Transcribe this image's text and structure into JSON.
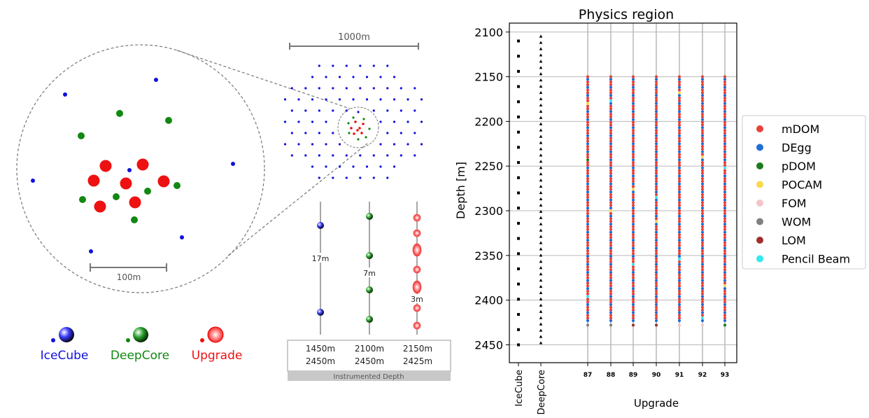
{
  "left_panel": {
    "zoom_scale_label": "100m",
    "legend": [
      {
        "name": "IceCube",
        "color": "#1010e0"
      },
      {
        "name": "DeepCore",
        "color": "#118811"
      },
      {
        "name": "Upgrade",
        "color": "#ee1111"
      }
    ]
  },
  "middle_panel": {
    "array_scale_label": "1000m",
    "spacings": [
      "17m",
      "7m",
      "3m"
    ],
    "depth_ranges": [
      {
        "top": "1450m",
        "bottom": "2450m"
      },
      {
        "top": "2100m",
        "bottom": "2450m"
      },
      {
        "top": "2150m",
        "bottom": "2425m"
      }
    ],
    "depth_caption": "Instrumented Depth"
  },
  "chart_data": {
    "type": "scatter",
    "title": "Physics region",
    "ylabel": "Depth [m]",
    "xlabel": "Upgrade",
    "ylim": [
      2470,
      2090
    ],
    "yticks": [
      2100,
      2150,
      2200,
      2250,
      2300,
      2350,
      2400,
      2450
    ],
    "grid": true,
    "legend_position": "right",
    "categories": [
      "IceCube",
      "DeepCore",
      "87",
      "88",
      "89",
      "90",
      "91",
      "92",
      "93"
    ],
    "icecube": {
      "marker": "square",
      "color": "#000000",
      "depth_start": 2110,
      "depth_end": 2450,
      "spacing": 17
    },
    "deepcore": {
      "marker": "triangle",
      "color": "#000000",
      "depth_start": 2105,
      "depth_end": 2448,
      "spacing": 7
    },
    "upgrade_strings": {
      "depth_start": 2150,
      "depth_end": 2425,
      "spacing": 3
    },
    "legend": [
      {
        "name": "mDOM",
        "color": "#e8413a"
      },
      {
        "name": "DEgg",
        "color": "#1f6fd6"
      },
      {
        "name": "pDOM",
        "color": "#1e7a1e"
      },
      {
        "name": "POCAM",
        "color": "#f7d94c"
      },
      {
        "name": "FOM",
        "color": "#f4c4c8"
      },
      {
        "name": "WOM",
        "color": "#808080"
      },
      {
        "name": "LOM",
        "color": "#a0302c"
      },
      {
        "name": "Pencil Beam",
        "color": "#33eaea"
      }
    ]
  }
}
